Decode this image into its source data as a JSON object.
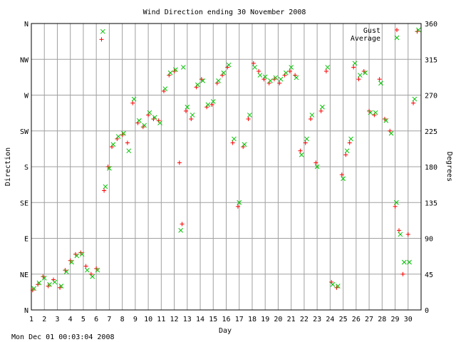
{
  "chart_data": {
    "type": "scatter",
    "title": "Wind Direction ending 30 November 2008",
    "xlabel": "Day",
    "ylabel_left": "Direction",
    "ylabel_right": "Degrees",
    "footer": "Mon Dec 01 00:03:04 2008",
    "xlim": [
      1,
      31
    ],
    "ylim": [
      0,
      360
    ],
    "x_ticks": [
      "1",
      "2",
      "3",
      "4",
      "5",
      "6",
      "7",
      "8",
      "9",
      "10",
      "11",
      "12",
      "13",
      "14",
      "15",
      "16",
      "17",
      "18",
      "19",
      "20",
      "21",
      "22",
      "23",
      "24",
      "25",
      "26",
      "27",
      "28",
      "29",
      "30"
    ],
    "y_ticks_left": [
      "N",
      "NE",
      "E",
      "SE",
      "S",
      "SW",
      "W",
      "NW",
      "N"
    ],
    "y_ticks_right": [
      "0",
      "45",
      "90",
      "135",
      "180",
      "225",
      "270",
      "315",
      "360"
    ],
    "grid": true,
    "legend_position": "top-right",
    "colors": {
      "gust": "#ff0000",
      "average": "#00c000"
    },
    "series": [
      {
        "name": "Gust",
        "marker": "plus",
        "points": [
          [
            1.1,
            25
          ],
          [
            1.5,
            32
          ],
          [
            1.9,
            42
          ],
          [
            2.3,
            30
          ],
          [
            2.7,
            38
          ],
          [
            3.2,
            28
          ],
          [
            3.6,
            50
          ],
          [
            4.0,
            62
          ],
          [
            4.4,
            70
          ],
          [
            4.8,
            72
          ],
          [
            5.2,
            55
          ],
          [
            5.6,
            45
          ],
          [
            6.0,
            52
          ],
          [
            6.4,
            340
          ],
          [
            6.6,
            150
          ],
          [
            6.9,
            180
          ],
          [
            7.2,
            205
          ],
          [
            7.6,
            215
          ],
          [
            8.0,
            220
          ],
          [
            8.4,
            210
          ],
          [
            8.8,
            260
          ],
          [
            9.2,
            235
          ],
          [
            9.6,
            230
          ],
          [
            10.0,
            245
          ],
          [
            10.4,
            240
          ],
          [
            10.8,
            238
          ],
          [
            11.2,
            275
          ],
          [
            11.6,
            295
          ],
          [
            12.0,
            300
          ],
          [
            12.4,
            185
          ],
          [
            12.6,
            108
          ],
          [
            12.9,
            250
          ],
          [
            13.3,
            240
          ],
          [
            13.7,
            280
          ],
          [
            14.1,
            290
          ],
          [
            14.5,
            255
          ],
          [
            14.9,
            258
          ],
          [
            15.3,
            285
          ],
          [
            15.7,
            295
          ],
          [
            16.1,
            305
          ],
          [
            16.5,
            210
          ],
          [
            16.9,
            130
          ],
          [
            17.3,
            205
          ],
          [
            17.7,
            240
          ],
          [
            18.1,
            310
          ],
          [
            18.5,
            300
          ],
          [
            18.9,
            290
          ],
          [
            19.3,
            285
          ],
          [
            19.7,
            290
          ],
          [
            20.1,
            285
          ],
          [
            20.5,
            295
          ],
          [
            20.9,
            300
          ],
          [
            21.3,
            295
          ],
          [
            21.7,
            200
          ],
          [
            22.1,
            210
          ],
          [
            22.5,
            240
          ],
          [
            22.9,
            185
          ],
          [
            23.3,
            250
          ],
          [
            23.7,
            300
          ],
          [
            24.1,
            35
          ],
          [
            24.5,
            28
          ],
          [
            24.9,
            170
          ],
          [
            25.2,
            195
          ],
          [
            25.5,
            210
          ],
          [
            25.8,
            305
          ],
          [
            26.2,
            290
          ],
          [
            26.6,
            300
          ],
          [
            27.0,
            250
          ],
          [
            27.4,
            245
          ],
          [
            27.8,
            290
          ],
          [
            28.2,
            240
          ],
          [
            28.6,
            225
          ],
          [
            29.0,
            130
          ],
          [
            29.3,
            100
          ],
          [
            29.6,
            45
          ],
          [
            30.0,
            95
          ],
          [
            30.4,
            260
          ],
          [
            30.7,
            350
          ]
        ]
      },
      {
        "name": "Average",
        "marker": "x",
        "points": [
          [
            1.2,
            27
          ],
          [
            1.6,
            34
          ],
          [
            2.0,
            40
          ],
          [
            2.4,
            32
          ],
          [
            2.8,
            35
          ],
          [
            3.3,
            30
          ],
          [
            3.7,
            48
          ],
          [
            4.1,
            60
          ],
          [
            4.5,
            68
          ],
          [
            4.9,
            70
          ],
          [
            5.3,
            50
          ],
          [
            5.7,
            42
          ],
          [
            6.1,
            50
          ],
          [
            6.5,
            350
          ],
          [
            6.7,
            155
          ],
          [
            7.0,
            178
          ],
          [
            7.3,
            208
          ],
          [
            7.7,
            218
          ],
          [
            8.1,
            222
          ],
          [
            8.5,
            200
          ],
          [
            8.9,
            265
          ],
          [
            9.3,
            238
          ],
          [
            9.7,
            232
          ],
          [
            10.1,
            248
          ],
          [
            10.5,
            242
          ],
          [
            10.9,
            235
          ],
          [
            11.3,
            278
          ],
          [
            11.7,
            298
          ],
          [
            12.1,
            302
          ],
          [
            12.5,
            100
          ],
          [
            12.7,
            305
          ],
          [
            13.0,
            255
          ],
          [
            13.4,
            245
          ],
          [
            13.8,
            283
          ],
          [
            14.2,
            288
          ],
          [
            14.6,
            258
          ],
          [
            15.0,
            262
          ],
          [
            15.4,
            288
          ],
          [
            15.8,
            298
          ],
          [
            16.2,
            308
          ],
          [
            16.6,
            215
          ],
          [
            17.0,
            135
          ],
          [
            17.4,
            208
          ],
          [
            17.8,
            245
          ],
          [
            18.2,
            305
          ],
          [
            18.6,
            295
          ],
          [
            19.0,
            293
          ],
          [
            19.4,
            288
          ],
          [
            19.8,
            292
          ],
          [
            20.2,
            290
          ],
          [
            20.6,
            298
          ],
          [
            21.0,
            305
          ],
          [
            21.4,
            292
          ],
          [
            21.8,
            195
          ],
          [
            22.2,
            215
          ],
          [
            22.6,
            245
          ],
          [
            23.0,
            180
          ],
          [
            23.4,
            255
          ],
          [
            23.8,
            305
          ],
          [
            24.2,
            32
          ],
          [
            24.6,
            30
          ],
          [
            25.0,
            165
          ],
          [
            25.3,
            200
          ],
          [
            25.6,
            215
          ],
          [
            25.9,
            310
          ],
          [
            26.3,
            295
          ],
          [
            26.7,
            298
          ],
          [
            27.1,
            248
          ],
          [
            27.5,
            248
          ],
          [
            27.9,
            285
          ],
          [
            28.3,
            238
          ],
          [
            28.7,
            222
          ],
          [
            29.1,
            135
          ],
          [
            29.4,
            95
          ],
          [
            29.7,
            60
          ],
          [
            30.1,
            60
          ],
          [
            30.5,
            265
          ],
          [
            30.8,
            352
          ]
        ]
      }
    ]
  }
}
